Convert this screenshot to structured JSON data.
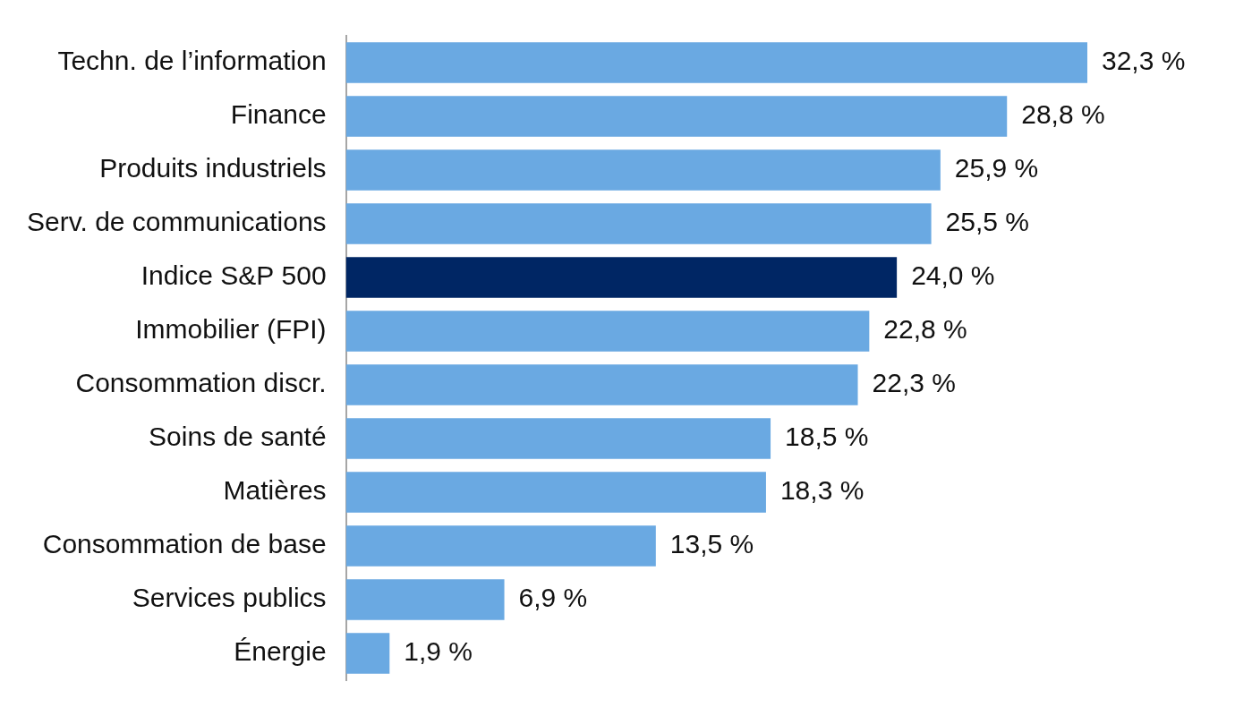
{
  "chart_data": {
    "type": "bar",
    "orientation": "horizontal",
    "categories": [
      "Techn. de l’information",
      "Finance",
      "Produits industriels",
      "Serv. de communications",
      "Indice S&P 500",
      "Immobilier (FPI)",
      "Consommation discr.",
      "Soins de santé",
      "Matières",
      "Consommation de base",
      "Services publics",
      "Énergie"
    ],
    "values": [
      32.3,
      28.8,
      25.9,
      25.5,
      24.0,
      22.8,
      22.3,
      18.5,
      18.3,
      13.5,
      6.9,
      1.9
    ],
    "value_labels": [
      "32,3 %",
      "28,8 %",
      "25,9 %",
      "25,5 %",
      "24,0 %",
      "22,8 %",
      "22,3 %",
      "18,5 %",
      "18,3 %",
      "13,5 %",
      "6,9 %",
      "1,9 %"
    ],
    "colors": [
      "#6aa9e2",
      "#6aa9e2",
      "#6aa9e2",
      "#6aa9e2",
      "#002664",
      "#6aa9e2",
      "#6aa9e2",
      "#6aa9e2",
      "#6aa9e2",
      "#6aa9e2",
      "#6aa9e2",
      "#6aa9e2"
    ],
    "data_labels": true,
    "tick_labels": "y",
    "grid": false
  }
}
